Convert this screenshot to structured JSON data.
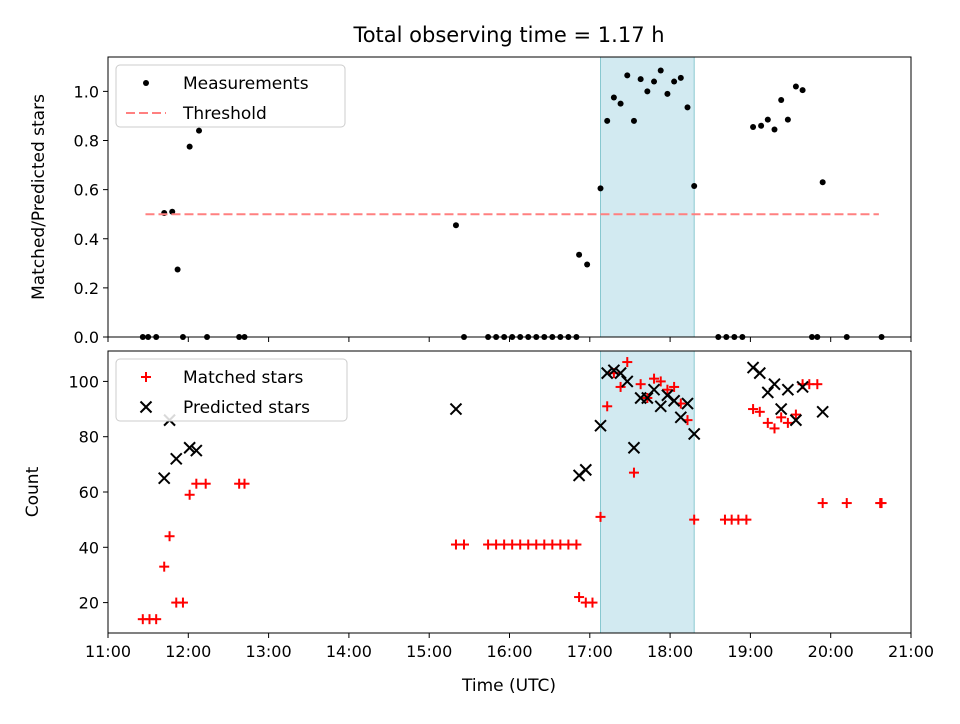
{
  "title": "Total observing time = 1.17 h",
  "xlabel": "Time (UTC)",
  "x_tick_labels": [
    "11:00",
    "12:00",
    "13:00",
    "14:00",
    "15:00",
    "16:00",
    "17:00",
    "18:00",
    "19:00",
    "20:00",
    "21:00"
  ],
  "colors": {
    "measurements": "#000000",
    "threshold": "#ff8080",
    "matched": "#ff0000",
    "predicted": "#000000",
    "highlight_fill": "#add8e6",
    "highlight_edge": "#88c8d0"
  },
  "chart_data": [
    {
      "type": "scatter",
      "ylabel": "Matched/Predicted stars",
      "ylim": [
        0,
        1.14
      ],
      "xlim": [
        "11:00",
        "21:00"
      ],
      "y_tick_labels": [
        "0.0",
        "0.2",
        "0.4",
        "0.6",
        "0.8",
        "1.0"
      ],
      "legend_position": "top-left",
      "highlight_span": [
        "17:08",
        "18:18"
      ],
      "series": [
        {
          "name": "Measurements",
          "marker": "dot",
          "points": [
            [
              "11:26",
              0
            ],
            [
              "11:30",
              0
            ],
            [
              "11:36",
              0
            ],
            [
              "11:42",
              0.505
            ],
            [
              "11:48",
              0.51
            ],
            [
              "11:52",
              0.275
            ],
            [
              "11:56",
              0
            ],
            [
              "12:01",
              0.775
            ],
            [
              "12:08",
              0.84
            ],
            [
              "12:14",
              0
            ],
            [
              "12:38",
              0
            ],
            [
              "12:42",
              0
            ],
            [
              "15:20",
              0.455
            ],
            [
              "15:26",
              0
            ],
            [
              "15:44",
              0
            ],
            [
              "15:50",
              0
            ],
            [
              "15:56",
              0
            ],
            [
              "16:02",
              0
            ],
            [
              "16:08",
              0
            ],
            [
              "16:14",
              0
            ],
            [
              "16:20",
              0
            ],
            [
              "16:26",
              0
            ],
            [
              "16:32",
              0
            ],
            [
              "16:38",
              0
            ],
            [
              "16:44",
              0
            ],
            [
              "16:50",
              0
            ],
            [
              "16:52",
              0.335
            ],
            [
              "16:58",
              0.295
            ],
            [
              "17:08",
              0.605
            ],
            [
              "17:13",
              0.88
            ],
            [
              "17:18",
              0.975
            ],
            [
              "17:23",
              0.95
            ],
            [
              "17:28",
              1.065
            ],
            [
              "17:33",
              0.88
            ],
            [
              "17:38",
              1.05
            ],
            [
              "17:43",
              1.0
            ],
            [
              "17:48",
              1.04
            ],
            [
              "17:53",
              1.085
            ],
            [
              "17:58",
              0.99
            ],
            [
              "18:03",
              1.04
            ],
            [
              "18:08",
              1.055
            ],
            [
              "18:13",
              0.935
            ],
            [
              "18:18",
              0.615
            ],
            [
              "18:36",
              0
            ],
            [
              "18:42",
              0
            ],
            [
              "18:48",
              0
            ],
            [
              "18:54",
              0
            ],
            [
              "19:02",
              0.855
            ],
            [
              "19:08",
              0.86
            ],
            [
              "19:13",
              0.885
            ],
            [
              "19:18",
              0.845
            ],
            [
              "19:23",
              0.965
            ],
            [
              "19:28",
              0.885
            ],
            [
              "19:34",
              1.02
            ],
            [
              "19:39",
              1.005
            ],
            [
              "19:46",
              0
            ],
            [
              "19:50",
              0
            ],
            [
              "19:54",
              0.63
            ],
            [
              "20:12",
              0
            ],
            [
              "20:38",
              0
            ]
          ]
        },
        {
          "name": "Threshold",
          "style": "dashed",
          "points": [
            [
              "11:28",
              0.5
            ],
            [
              "20:36",
              0.5
            ]
          ]
        }
      ]
    },
    {
      "type": "scatter",
      "ylabel": "Count",
      "ylim": [
        9,
        111
      ],
      "xlim": [
        "11:00",
        "21:00"
      ],
      "y_tick_labels": [
        "20",
        "40",
        "60",
        "80",
        "100"
      ],
      "legend_position": "top-left",
      "highlight_span": [
        "17:08",
        "18:18"
      ],
      "series": [
        {
          "name": "Matched stars",
          "marker": "plus",
          "points": [
            [
              "11:26",
              14
            ],
            [
              "11:31",
              14
            ],
            [
              "11:36",
              14
            ],
            [
              "11:42",
              33
            ],
            [
              "11:46",
              44
            ],
            [
              "11:51",
              20
            ],
            [
              "11:56",
              20
            ],
            [
              "12:01",
              59
            ],
            [
              "12:06",
              63
            ],
            [
              "12:13",
              63
            ],
            [
              "12:38",
              63
            ],
            [
              "12:42",
              63
            ],
            [
              "15:20",
              41
            ],
            [
              "15:26",
              41
            ],
            [
              "15:44",
              41
            ],
            [
              "15:50",
              41
            ],
            [
              "15:56",
              41
            ],
            [
              "16:02",
              41
            ],
            [
              "16:08",
              41
            ],
            [
              "16:14",
              41
            ],
            [
              "16:20",
              41
            ],
            [
              "16:26",
              41
            ],
            [
              "16:32",
              41
            ],
            [
              "16:38",
              41
            ],
            [
              "16:44",
              41
            ],
            [
              "16:50",
              41
            ],
            [
              "16:52",
              22
            ],
            [
              "16:57",
              20
            ],
            [
              "17:02",
              20
            ],
            [
              "17:08",
              51
            ],
            [
              "17:13",
              91
            ],
            [
              "17:18",
              103
            ],
            [
              "17:23",
              98
            ],
            [
              "17:28",
              107
            ],
            [
              "17:33",
              67
            ],
            [
              "17:38",
              99
            ],
            [
              "17:43",
              94
            ],
            [
              "17:48",
              101
            ],
            [
              "17:53",
              100
            ],
            [
              "17:58",
              97
            ],
            [
              "18:03",
              98
            ],
            [
              "18:08",
              92
            ],
            [
              "18:13",
              86
            ],
            [
              "18:18",
              50
            ],
            [
              "18:41",
              50
            ],
            [
              "18:46",
              50
            ],
            [
              "18:51",
              50
            ],
            [
              "18:57",
              50
            ],
            [
              "19:02",
              90
            ],
            [
              "19:07",
              89
            ],
            [
              "19:13",
              85
            ],
            [
              "19:18",
              83
            ],
            [
              "19:23",
              87
            ],
            [
              "19:28",
              85
            ],
            [
              "19:34",
              88
            ],
            [
              "19:39",
              99
            ],
            [
              "19:44",
              99
            ],
            [
              "19:50",
              99
            ],
            [
              "19:54",
              56
            ],
            [
              "20:12",
              56
            ],
            [
              "20:37",
              56
            ],
            [
              "20:38",
              56
            ]
          ]
        },
        {
          "name": "Predicted stars",
          "marker": "x",
          "points": [
            [
              "11:42",
              65
            ],
            [
              "11:46",
              86
            ],
            [
              "11:51",
              72
            ],
            [
              "12:01",
              76
            ],
            [
              "12:06",
              75
            ],
            [
              "15:20",
              90
            ],
            [
              "16:52",
              66
            ],
            [
              "16:57",
              68
            ],
            [
              "17:08",
              84
            ],
            [
              "17:13",
              103
            ],
            [
              "17:18",
              104
            ],
            [
              "17:23",
              103
            ],
            [
              "17:28",
              100
            ],
            [
              "17:33",
              76
            ],
            [
              "17:38",
              94
            ],
            [
              "17:43",
              94
            ],
            [
              "17:48",
              97
            ],
            [
              "17:53",
              91
            ],
            [
              "17:58",
              95
            ],
            [
              "18:03",
              93
            ],
            [
              "18:08",
              87
            ],
            [
              "18:13",
              92
            ],
            [
              "18:18",
              81
            ],
            [
              "19:02",
              105
            ],
            [
              "19:07",
              103
            ],
            [
              "19:13",
              96
            ],
            [
              "19:18",
              99
            ],
            [
              "19:23",
              90
            ],
            [
              "19:28",
              97
            ],
            [
              "19:34",
              86
            ],
            [
              "19:39",
              98
            ],
            [
              "19:54",
              89
            ]
          ]
        }
      ]
    }
  ]
}
